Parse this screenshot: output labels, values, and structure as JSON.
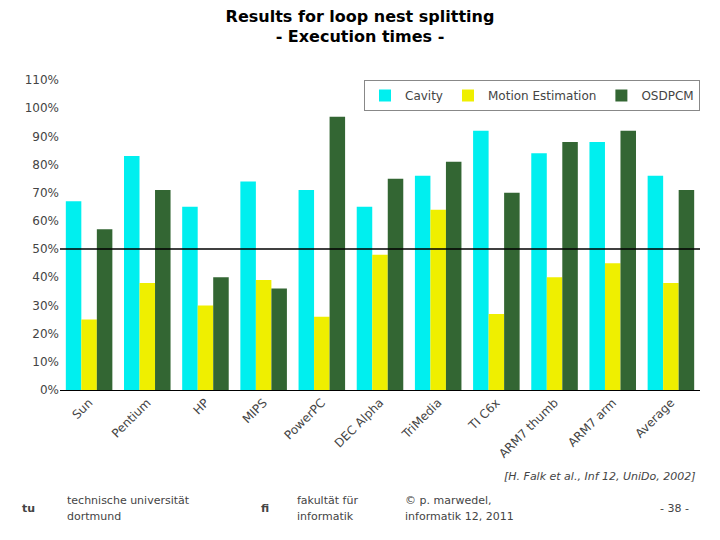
{
  "chart_data": {
    "type": "bar",
    "title": "Results for loop nest splitting",
    "subtitle": "- Execution times -",
    "categories": [
      "Sun",
      "Pentium",
      "HP",
      "MIPS",
      "PowerPC",
      "DEC Alpha",
      "TriMedia",
      "TI C6x",
      "ARM7 thumb",
      "ARM7 arm",
      "Average"
    ],
    "series": [
      {
        "name": "Cavity",
        "color": "#00EFEF",
        "values": [
          67,
          83,
          65,
          74,
          71,
          65,
          76,
          92,
          84,
          88,
          76
        ]
      },
      {
        "name": "Motion Estimation",
        "color": "#EFEF00",
        "values": [
          25,
          38,
          30,
          39,
          26,
          48,
          64,
          27,
          40,
          45,
          38
        ]
      },
      {
        "name": "OSDPCM",
        "color": "#336633",
        "values": [
          57,
          71,
          40,
          36,
          97,
          75,
          81,
          70,
          88,
          92,
          71
        ]
      }
    ],
    "ylim": [
      0,
      110
    ],
    "yticks": [
      {
        "value": 0,
        "label": "0%"
      },
      {
        "value": 10,
        "label": "10%"
      },
      {
        "value": 20,
        "label": "20%"
      },
      {
        "value": 30,
        "label": "30%"
      },
      {
        "value": 40,
        "label": "40%"
      },
      {
        "value": 50,
        "label": "50%"
      },
      {
        "value": 60,
        "label": "60%"
      },
      {
        "value": 70,
        "label": "70%"
      },
      {
        "value": 80,
        "label": "80%"
      },
      {
        "value": 90,
        "label": "90%"
      },
      {
        "value": 100,
        "label": "100%"
      },
      {
        "value": 110,
        "label": "110%"
      }
    ],
    "hline": 50,
    "grid": false,
    "legend": "upper right",
    "annotations": [
      "[H. Falk et al., Inf 12, UniDo, 2002]"
    ],
    "footer": [
      "tu",
      "technische universität",
      "dortmund",
      "fi",
      "fakultät für",
      "informatik",
      "© p. marwedel,",
      "informatik 12, 2011",
      "- 38 -"
    ]
  }
}
